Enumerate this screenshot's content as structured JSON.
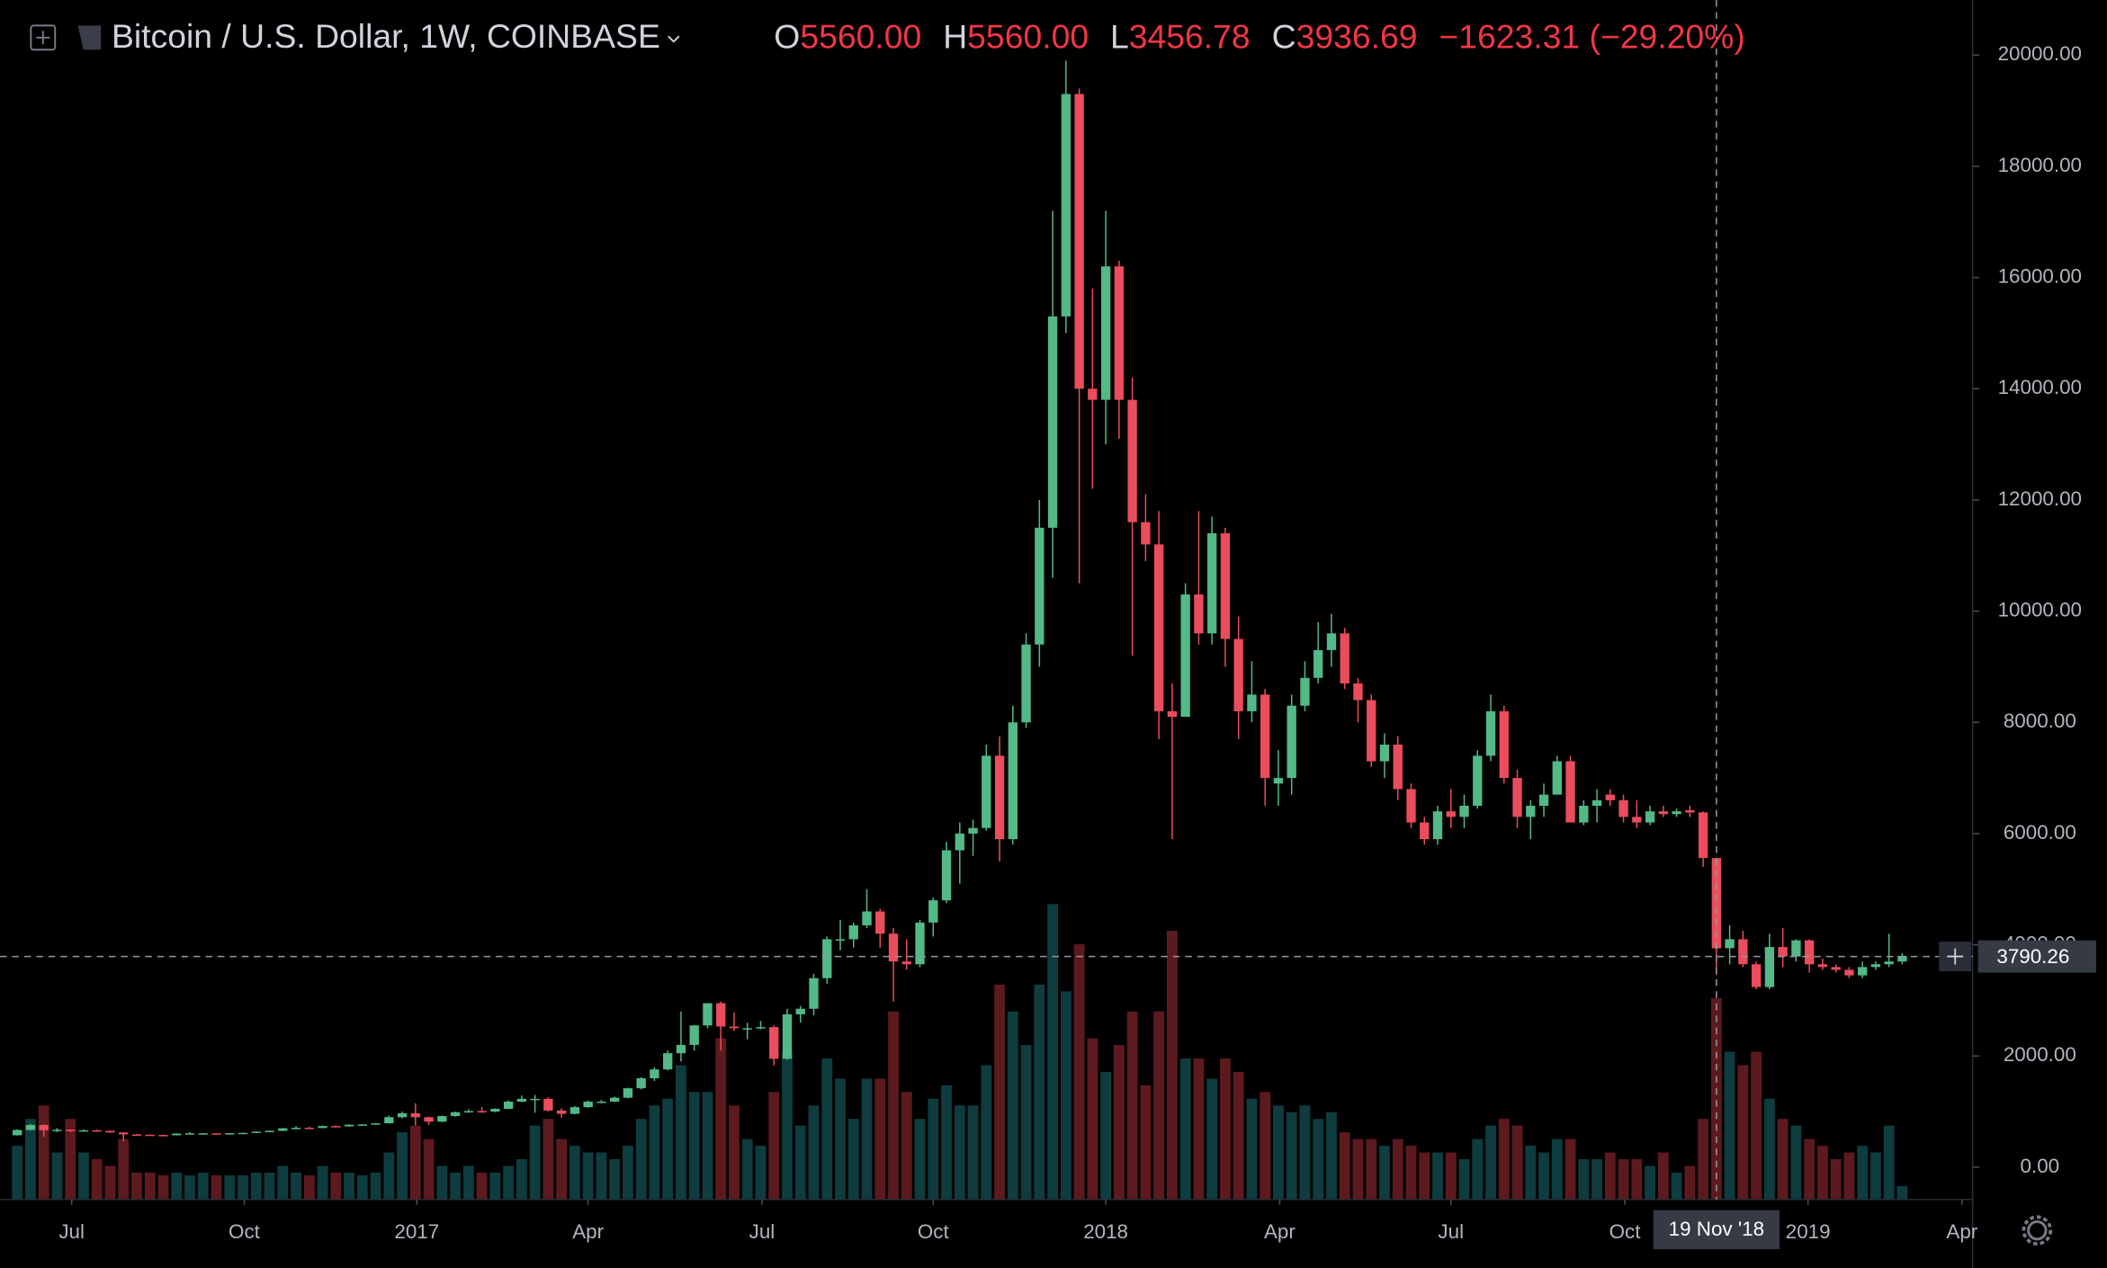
{
  "chart_data": {
    "type": "candlestick",
    "title": "Bitcoin / U.S. Dollar, 1W, COINBASE",
    "legend": [
      {
        "label": "O",
        "value": "5560.00"
      },
      {
        "label": "H",
        "value": "5560.00"
      },
      {
        "label": "L",
        "value": "3456.78"
      },
      {
        "label": "C",
        "value": "3936.69"
      }
    ],
    "change": "−1623.31 (−29.20%)",
    "open": [
      575,
      670,
      760,
      665,
      675,
      650,
      665,
      655,
      625,
      590,
      585,
      580,
      575,
      605,
      610,
      610,
      605,
      612,
      618,
      640,
      655,
      700,
      710,
      705,
      740,
      735,
      765,
      770,
      790,
      900,
      970,
      900,
      820,
      920,
      990,
      1010,
      1000,
      1050,
      1180,
      1230,
      1230,
      1020,
      960,
      1080,
      1180,
      1180,
      1250,
      1420,
      1600,
      1760,
      2050,
      2200,
      2550,
      2950,
      2530,
      2500,
      2500,
      2520,
      1950,
      2750,
      2850,
      3400,
      4100,
      4100,
      4350,
      4600,
      4200,
      3700,
      3650,
      4400,
      4800,
      5700,
      6000,
      6100,
      7400,
      5900,
      8000,
      9400,
      11500,
      15300,
      19300,
      14000,
      13800,
      16200,
      13800,
      11600,
      11200,
      8200,
      8100,
      10300,
      9600,
      11400,
      9500,
      8200,
      8500,
      6900,
      7000,
      8300,
      8800,
      9300,
      9600,
      8700,
      8400,
      7300,
      7600,
      6800,
      6200,
      5900,
      6400,
      6300,
      6500,
      7400,
      8200,
      7000,
      6300,
      6500,
      6700,
      7300,
      6200,
      6500,
      6700,
      6600,
      6300,
      6200,
      6400,
      6350,
      6420,
      6380,
      5560,
      3940,
      4100,
      3650,
      3240,
      3960,
      3790,
      4080,
      3650,
      3600,
      3550,
      3450,
      3600,
      3650,
      3700
    ],
    "high": [
      680,
      780,
      770,
      705,
      680,
      680,
      675,
      660,
      630,
      600,
      590,
      590,
      610,
      630,
      615,
      612,
      615,
      620,
      645,
      660,
      705,
      740,
      725,
      750,
      750,
      770,
      775,
      795,
      930,
      1000,
      1150,
      910,
      930,
      1000,
      1040,
      1080,
      1060,
      1200,
      1290,
      1300,
      1260,
      1060,
      1100,
      1200,
      1210,
      1270,
      1430,
      1620,
      1800,
      2100,
      2800,
      2560,
      2950,
      2980,
      2780,
      2600,
      2630,
      2550,
      2850,
      2900,
      3480,
      4150,
      4450,
      4400,
      5000,
      4650,
      4300,
      4100,
      4450,
      4850,
      5850,
      6200,
      6250,
      7600,
      7750,
      8300,
      9600,
      12000,
      17200,
      19900,
      19400,
      15800,
      17200,
      16300,
      14200,
      12100,
      11800,
      8700,
      10500,
      11800,
      11700,
      11500,
      9900,
      9100,
      8600,
      7500,
      8500,
      9100,
      9800,
      9950,
      9700,
      8800,
      8500,
      7800,
      7750,
      6900,
      6300,
      6500,
      6800,
      6700,
      7500,
      8500,
      8300,
      7150,
      6600,
      6900,
      7400,
      7400,
      6600,
      6800,
      6800,
      6700,
      6600,
      6500,
      6500,
      6450,
      6500,
      6400,
      5560,
      4350,
      4250,
      3700,
      4200,
      4300,
      4100,
      4100,
      3750,
      3650,
      3600,
      3700,
      3700,
      4200,
      3850
    ],
    "low": [
      570,
      660,
      550,
      630,
      635,
      645,
      650,
      620,
      470,
      580,
      570,
      575,
      570,
      600,
      600,
      595,
      600,
      605,
      615,
      630,
      650,
      680,
      690,
      700,
      725,
      730,
      750,
      765,
      785,
      880,
      750,
      760,
      810,
      910,
      980,
      980,
      990,
      1045,
      1170,
      980,
      1000,
      890,
      950,
      1070,
      1150,
      1170,
      1240,
      1400,
      1550,
      1740,
      1900,
      2100,
      2500,
      2100,
      2450,
      2300,
      2480,
      1830,
      1930,
      2600,
      2730,
      3300,
      3900,
      3950,
      4300,
      3950,
      2980,
      3550,
      3600,
      4150,
      4750,
      5100,
      5600,
      6050,
      5500,
      5800,
      7900,
      9000,
      10600,
      15000,
      10500,
      12200,
      13000,
      13100,
      9200,
      10900,
      7700,
      5900,
      8100,
      9400,
      9400,
      9000,
      7700,
      8000,
      6500,
      6500,
      6700,
      8200,
      8700,
      9000,
      8600,
      8000,
      7200,
      7000,
      6600,
      6100,
      5800,
      5800,
      6100,
      6100,
      6450,
      7300,
      6900,
      6100,
      5900,
      6300,
      6700,
      6200,
      6150,
      6200,
      6500,
      6200,
      6100,
      6150,
      6300,
      6300,
      6300,
      5400,
      3456.78,
      3650,
      3600,
      3200,
      3200,
      3600,
      3700,
      3500,
      3550,
      3500,
      3400,
      3400,
      3550,
      3600,
      3650
    ],
    "close": [
      670,
      760,
      665,
      675,
      650,
      665,
      655,
      625,
      590,
      585,
      580,
      575,
      605,
      610,
      610,
      605,
      612,
      618,
      640,
      655,
      700,
      710,
      705,
      740,
      735,
      765,
      770,
      790,
      900,
      970,
      900,
      820,
      920,
      990,
      1010,
      1000,
      1050,
      1180,
      1230,
      1230,
      1020,
      960,
      1080,
      1180,
      1180,
      1250,
      1420,
      1600,
      1760,
      2050,
      2200,
      2550,
      2950,
      2530,
      2500,
      2500,
      2520,
      1950,
      2750,
      2850,
      3400,
      4100,
      4100,
      4350,
      4600,
      4200,
      3700,
      3650,
      4400,
      4800,
      5700,
      6000,
      6100,
      7400,
      5900,
      8000,
      9400,
      11500,
      15300,
      19300,
      14000,
      13800,
      16200,
      13800,
      11600,
      11200,
      8200,
      8100,
      10300,
      9600,
      11400,
      9500,
      8200,
      8500,
      7000,
      7000,
      8300,
      8800,
      9300,
      9600,
      8700,
      8400,
      7300,
      7600,
      6800,
      6200,
      5900,
      6400,
      6300,
      6500,
      7400,
      8200,
      7000,
      6300,
      6500,
      6700,
      7300,
      6200,
      6500,
      6600,
      6600,
      6300,
      6200,
      6400,
      6350,
      6400,
      6380,
      5560,
      3936.69,
      4100,
      3650,
      3240,
      3960,
      3790,
      4080,
      3650,
      3600,
      3550,
      3450,
      3600,
      3650,
      3700,
      3800
    ],
    "volume": [
      40,
      60,
      70,
      35,
      60,
      35,
      30,
      25,
      45,
      20,
      20,
      18,
      20,
      18,
      20,
      18,
      18,
      18,
      20,
      20,
      25,
      20,
      18,
      25,
      20,
      20,
      18,
      20,
      35,
      50,
      55,
      45,
      25,
      20,
      25,
      20,
      20,
      25,
      30,
      55,
      60,
      45,
      40,
      35,
      35,
      30,
      40,
      60,
      70,
      75,
      100,
      80,
      80,
      120,
      70,
      45,
      40,
      80,
      110,
      55,
      70,
      105,
      90,
      60,
      90,
      90,
      140,
      80,
      60,
      75,
      85,
      70,
      70,
      100,
      160,
      140,
      115,
      160,
      220,
      155,
      190,
      120,
      95,
      115,
      140,
      85,
      140,
      200,
      105,
      105,
      90,
      105,
      95,
      75,
      80,
      70,
      65,
      70,
      60,
      65,
      50,
      45,
      45,
      40,
      45,
      40,
      35,
      35,
      35,
      30,
      45,
      55,
      60,
      55,
      40,
      35,
      45,
      45,
      30,
      30,
      35,
      30,
      30,
      25,
      35,
      20,
      25,
      60,
      150,
      110,
      100,
      110,
      75,
      60,
      55,
      45,
      40,
      30,
      35,
      40,
      35,
      55,
      10
    ],
    "volume_lim": [
      0,
      893
    ],
    "up_color": "#53b987",
    "down_color": "#eb4d5c",
    "volume_up_color": "#0e3c3f",
    "volume_down_color": "#5c1a1f",
    "xlim": [
      -1.3,
      147.3
    ],
    "xticks": [
      {
        "value": 4.1,
        "label": "Jul"
      },
      {
        "value": 17.1,
        "label": "Oct"
      },
      {
        "value": 30.1,
        "label": "2017"
      },
      {
        "value": 43,
        "label": "Apr"
      },
      {
        "value": 56.1,
        "label": "Jul"
      },
      {
        "value": 69,
        "label": "Oct"
      },
      {
        "value": 82,
        "label": "2018"
      },
      {
        "value": 95.1,
        "label": "Apr"
      },
      {
        "value": 108,
        "label": "Jul"
      },
      {
        "value": 121.1,
        "label": "Oct"
      },
      {
        "value": 134.9,
        "label": "2019"
      },
      {
        "value": 146.5,
        "label": "Apr"
      }
    ],
    "ylim": [
      -580,
      20990
    ],
    "yticks": [
      {
        "value": 0,
        "label": "0.00"
      },
      {
        "value": 2000,
        "label": "2000.00"
      },
      {
        "value": 4000,
        "label": "4000.00"
      },
      {
        "value": 6000,
        "label": "6000.00"
      },
      {
        "value": 8000,
        "label": "8000.00"
      },
      {
        "value": 10000,
        "label": "10000.00"
      },
      {
        "value": 12000,
        "label": "12000.00"
      },
      {
        "value": 14000,
        "label": "14000.00"
      },
      {
        "value": 16000,
        "label": "16000.00"
      },
      {
        "value": 18000,
        "label": "18000.00"
      },
      {
        "value": 20000,
        "label": "20000.00"
      }
    ],
    "crosshair": {
      "x": 128,
      "x_label": "19 Nov '18",
      "y": 3790.26
    }
  }
}
